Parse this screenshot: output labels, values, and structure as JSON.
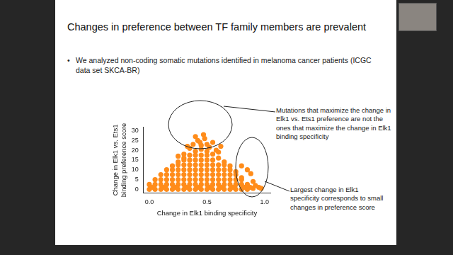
{
  "slide": {
    "title": "Changes in preference between TF family members are prevalent",
    "bullet": "We analyzed non-coding somatic mutations identified in melanoma cancer patients (ICGC data set SKCA-BR)"
  },
  "chart_data": {
    "type": "scatter",
    "x_label": "Change in Elk1 binding specificity",
    "y_label": [
      "Change in Elk1 vs. Ets1",
      "binding preference score"
    ],
    "annotations": [
      "Mutations that maximize the change in Elk1 vs. Ets1 preference are not the ones that maximize the change in Elk1 binding specificity",
      "Largest change in Elk1 specificity corresponds to small changes in preference score"
    ],
    "color": "#ff8c1a",
    "marker": "circle",
    "grid": false,
    "legend": false,
    "xlim": [
      -0.05,
      1.05
    ],
    "xticks": [
      {
        "value": 0,
        "label": "0.0"
      },
      {
        "value": 0.5,
        "label": "0.5"
      },
      {
        "value": 1,
        "label": "1.0"
      }
    ],
    "ylim": [
      -2,
      32
    ],
    "yticks": [
      0,
      5,
      10,
      15,
      20,
      25,
      30
    ],
    "x": [
      0,
      0,
      0.05,
      0.05,
      0.05,
      0.1,
      0.1,
      0.1,
      0.1,
      0.15,
      0.15,
      0.15,
      0.15,
      0.15,
      0.2,
      0.2,
      0.2,
      0.2,
      0.2,
      0.2,
      0.25,
      0.25,
      0.25,
      0.25,
      0.25,
      0.25,
      0.25,
      0.3,
      0.3,
      0.3,
      0.3,
      0.3,
      0.3,
      0.3,
      0.3,
      0.35,
      0.35,
      0.35,
      0.35,
      0.35,
      0.35,
      0.35,
      0.35,
      0.4,
      0.4,
      0.4,
      0.4,
      0.4,
      0.4,
      0.4,
      0.4,
      0.4,
      0.45,
      0.45,
      0.45,
      0.45,
      0.45,
      0.45,
      0.45,
      0.45,
      0.45,
      0.5,
      0.5,
      0.5,
      0.5,
      0.5,
      0.5,
      0.5,
      0.5,
      0.5,
      0.55,
      0.55,
      0.55,
      0.55,
      0.55,
      0.55,
      0.55,
      0.55,
      0.6,
      0.6,
      0.6,
      0.6,
      0.6,
      0.6,
      0.6,
      0.65,
      0.65,
      0.65,
      0.65,
      0.65,
      0.65,
      0.65,
      0.7,
      0.7,
      0.7,
      0.7,
      0.7,
      0.7,
      0.75,
      0.75,
      0.75,
      0.75,
      0.75,
      0.8,
      0.8,
      0.8,
      0.8,
      0.85,
      0.85,
      0.9,
      0.025,
      0.125,
      0.225,
      0.325,
      0.425,
      0.525,
      0.625,
      0.725,
      0.825,
      0.875,
      0.95,
      0.97,
      0.3,
      0.35,
      0.38,
      0.42,
      0.45,
      0.48,
      0.5,
      0.52,
      0.55,
      0.58,
      0.4,
      0.33,
      0.6,
      0.25,
      0.62,
      0.47,
      0.44,
      0.88,
      0.9,
      0.92,
      0.85,
      0.8
    ],
    "values": [
      0,
      2.5,
      0,
      2.5,
      5,
      0,
      2.5,
      5,
      7.5,
      0,
      2.5,
      5,
      7.5,
      10,
      0,
      2.5,
      5,
      7.5,
      10,
      12,
      0,
      2.5,
      5,
      7.5,
      10,
      12.5,
      14,
      0,
      2.5,
      5,
      7.5,
      10,
      12.5,
      15,
      16,
      0,
      2.5,
      5,
      7.5,
      10,
      12.5,
      15,
      17.5,
      0,
      2.5,
      5,
      7.5,
      10,
      12.5,
      15,
      17.5,
      19.5,
      0,
      2.5,
      5,
      7.5,
      10,
      12.5,
      15,
      17.5,
      20.5,
      0,
      2.5,
      5,
      7.5,
      10,
      12.5,
      15,
      17.5,
      19.5,
      0,
      2.5,
      5,
      7.5,
      10,
      12.5,
      15,
      18,
      0,
      2.5,
      5,
      7.5,
      10,
      12.5,
      16,
      0,
      2.5,
      5,
      7.5,
      10,
      12.5,
      14,
      0,
      2.5,
      5,
      7.5,
      10,
      12,
      0,
      2.5,
      5,
      7.5,
      9,
      0,
      2.5,
      5,
      6,
      0,
      2.5,
      0.5,
      1,
      1,
      1,
      1,
      1,
      1,
      1,
      1,
      1,
      1,
      1,
      0.5,
      18,
      21,
      23,
      25,
      22.5,
      26,
      23,
      21.5,
      24,
      20,
      27,
      22,
      19,
      17,
      22,
      28,
      24,
      8,
      4,
      2,
      10,
      12
    ]
  }
}
